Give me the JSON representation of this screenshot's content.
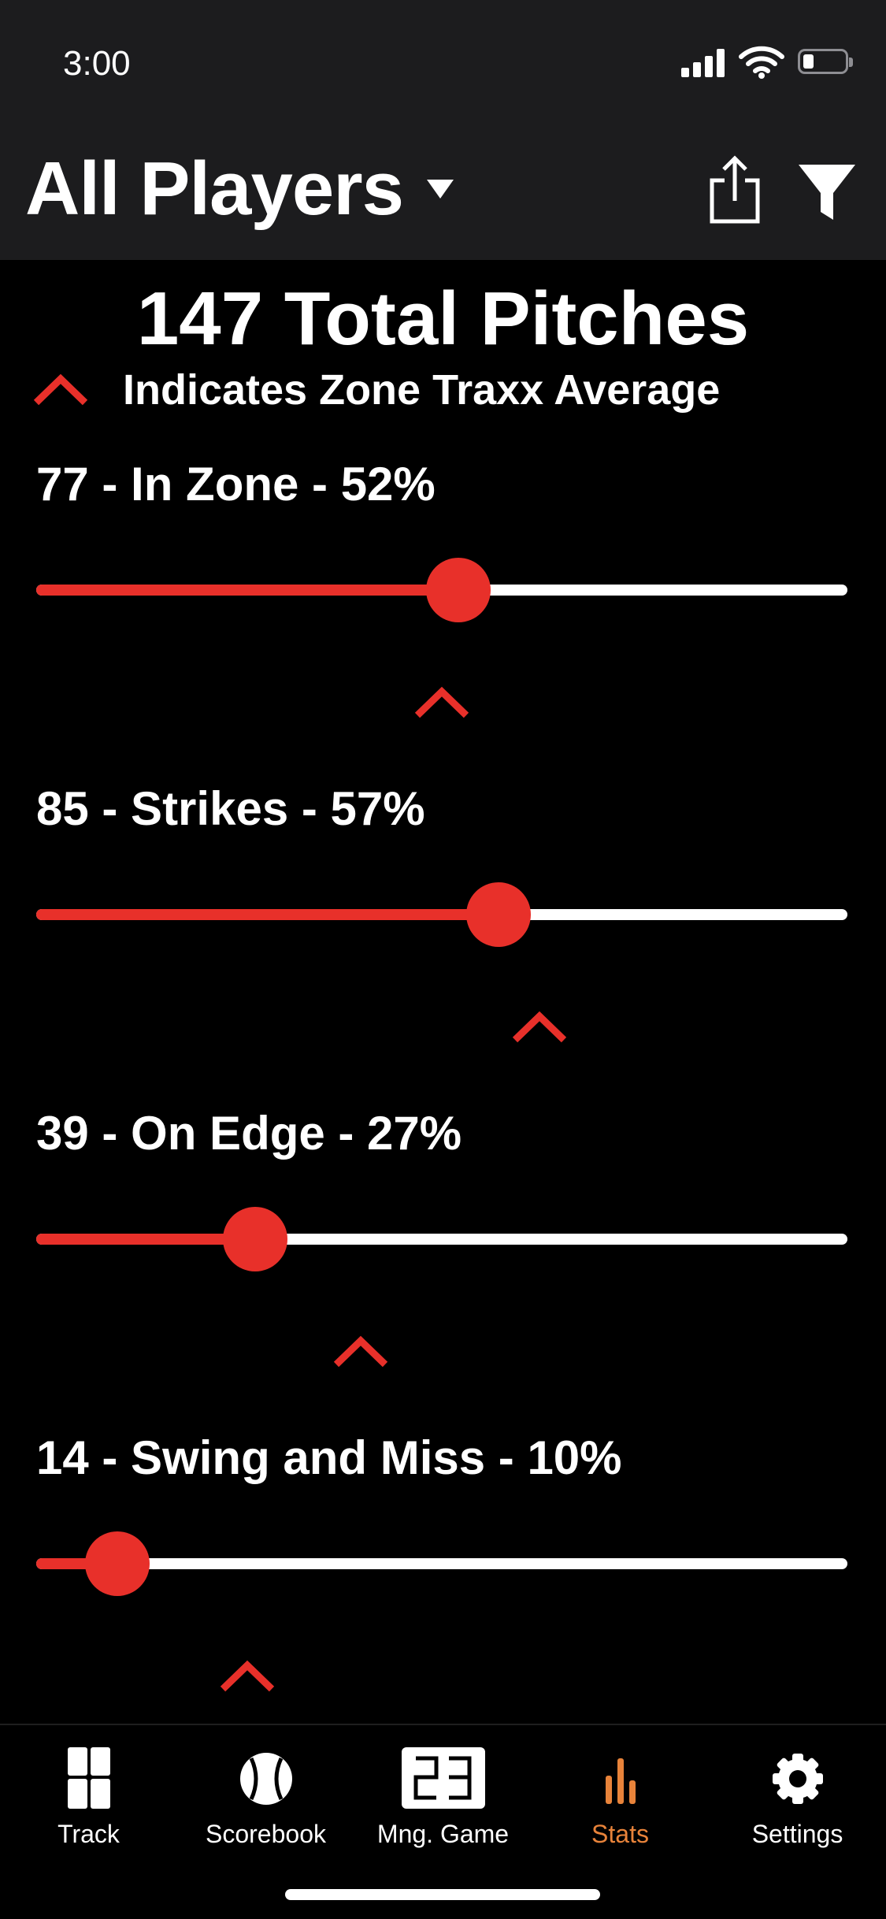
{
  "status_bar": {
    "time": "3:00",
    "battery_level": 0.25
  },
  "header": {
    "title": "All Players"
  },
  "summary": {
    "total": "147 Total Pitches"
  },
  "legend": {
    "text": "Indicates Zone Traxx Average"
  },
  "colors": {
    "accent": "#e8302a",
    "active_tab": "#e8833a",
    "header_bg": "#1c1c1e"
  },
  "stats": [
    {
      "label": "77 - In Zone - 52%",
      "value": 52,
      "average": 50
    },
    {
      "label": "85 - Strikes - 57%",
      "value": 57,
      "average": 62
    },
    {
      "label": "39 - On Edge - 27%",
      "value": 27,
      "average": 40
    },
    {
      "label": "14 - Swing and Miss - 10%",
      "value": 10,
      "average": 26
    }
  ],
  "tabs": [
    {
      "label": "Track",
      "icon": "grid-icon",
      "active": false
    },
    {
      "label": "Scorebook",
      "icon": "baseball-icon",
      "active": false
    },
    {
      "label": "Mng. Game",
      "icon": "scoreboard-icon",
      "active": false
    },
    {
      "label": "Stats",
      "icon": "bar-chart-icon",
      "active": true
    },
    {
      "label": "Settings",
      "icon": "gear-icon",
      "active": false
    }
  ]
}
